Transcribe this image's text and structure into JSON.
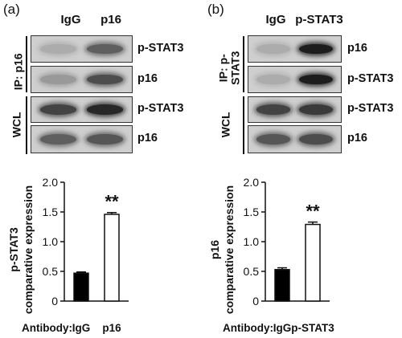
{
  "panels": [
    {
      "label": "(a)",
      "lanes": [
        "IgG",
        "p16"
      ],
      "ip_label": "IP: p16",
      "wcl_label": "WCL",
      "blots": [
        {
          "label": "p-STAT3",
          "bands": [
            0.15,
            0.55
          ]
        },
        {
          "label": "p16",
          "bands": [
            0.25,
            0.65
          ]
        },
        {
          "label": "p-STAT3",
          "bands": [
            0.7,
            0.85
          ]
        },
        {
          "label": "p16",
          "bands": [
            0.55,
            0.6
          ]
        }
      ],
      "antibody_row": {
        "prefix": "Antibody:",
        "labels": [
          "IgG",
          "p16"
        ]
      },
      "significance": "**"
    },
    {
      "label": "(b)",
      "lanes": [
        "IgG",
        "p-STAT3"
      ],
      "ip_label": "IP: p-\nSTAT3",
      "wcl_label": "WCL",
      "blots": [
        {
          "label": "p16",
          "bands": [
            0.15,
            0.9
          ]
        },
        {
          "label": "p-STAT3",
          "bands": [
            0.15,
            0.9
          ]
        },
        {
          "label": "p-STAT3",
          "bands": [
            0.7,
            0.75
          ]
        },
        {
          "label": "p16",
          "bands": [
            0.6,
            0.65
          ]
        }
      ],
      "antibody_row": {
        "prefix": "Antibody:",
        "labels": [
          "IgG",
          "p-STAT3"
        ]
      },
      "significance": "**"
    }
  ],
  "chart_data": [
    {
      "type": "bar",
      "categories": [
        "IgG",
        "p16"
      ],
      "values": [
        0.47,
        1.46
      ],
      "errors": [
        0.02,
        0.03
      ],
      "fills": [
        "#000000",
        "#ffffff"
      ],
      "ylabel_line1": "p-STAT3",
      "ylabel_line2": "comparative expression",
      "ylim": [
        0,
        2.0
      ],
      "yticks": [
        "0",
        "0.5",
        "1.0",
        "1.5",
        "2.0"
      ],
      "annotations": [
        {
          "category": "p16",
          "text": "**"
        }
      ]
    },
    {
      "type": "bar",
      "categories": [
        "IgG",
        "p-STAT3"
      ],
      "values": [
        0.53,
        1.29
      ],
      "errors": [
        0.03,
        0.04
      ],
      "fills": [
        "#000000",
        "#ffffff"
      ],
      "ylabel_line1": "p16",
      "ylabel_line2": "comparative expression",
      "ylim": [
        0,
        2.0
      ],
      "yticks": [
        "0",
        "0.5",
        "1.0",
        "1.5",
        "2.0"
      ],
      "annotations": [
        {
          "category": "p-STAT3",
          "text": "**"
        }
      ]
    }
  ]
}
